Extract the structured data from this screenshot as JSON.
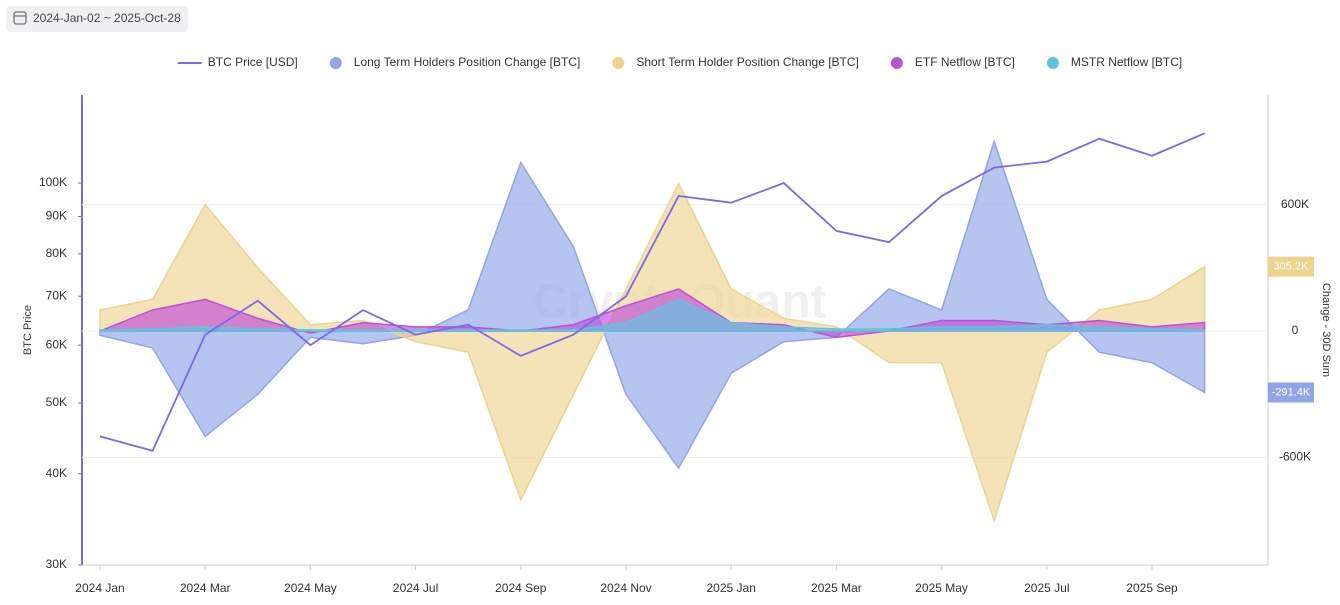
{
  "date_range": "2024-Jan-02 ~ 2025-Oct-28",
  "chart_data": {
    "type": "area",
    "watermark": "CryptoQuant",
    "y_label": "BTC Price",
    "y2_label": "Change - 30D Sum",
    "ylog": true,
    "grid": true,
    "legend": "top",
    "x": [
      "2024-01",
      "2024-02",
      "2024-03",
      "2024-04",
      "2024-05",
      "2024-06",
      "2024-07",
      "2024-08",
      "2024-09",
      "2024-10",
      "2024-11",
      "2024-12",
      "2025-01",
      "2025-02",
      "2025-03",
      "2025-04",
      "2025-05",
      "2025-06",
      "2025-07",
      "2025-08",
      "2025-09",
      "2025-10"
    ],
    "xticks": [
      {
        "value": "2024-01",
        "label": "2024 Jan"
      },
      {
        "value": "2024-03",
        "label": "2024 Mar"
      },
      {
        "value": "2024-05",
        "label": "2024 May"
      },
      {
        "value": "2024-07",
        "label": "2024 Jul"
      },
      {
        "value": "2024-09",
        "label": "2024 Sep"
      },
      {
        "value": "2024-11",
        "label": "2024 Nov"
      },
      {
        "value": "2025-01",
        "label": "2025 Jan"
      },
      {
        "value": "2025-03",
        "label": "2025 Mar"
      },
      {
        "value": "2025-05",
        "label": "2025 May"
      },
      {
        "value": "2025-07",
        "label": "2025 Jul"
      },
      {
        "value": "2025-09",
        "label": "2025 Sep"
      }
    ],
    "ylim": [
      30000,
      132000
    ],
    "yticks": [
      {
        "value": 30000,
        "label": "30K"
      },
      {
        "value": 40000,
        "label": "40K"
      },
      {
        "value": 50000,
        "label": "50K"
      },
      {
        "value": 60000,
        "label": "60K"
      },
      {
        "value": 70000,
        "label": "70K"
      },
      {
        "value": 80000,
        "label": "80K"
      },
      {
        "value": 90000,
        "label": "90K"
      },
      {
        "value": 100000,
        "label": "100K"
      }
    ],
    "y2lim": [
      -1110000,
      1120000
    ],
    "y2ticks": [
      {
        "value": -600000,
        "label": "-600K"
      },
      0,
      {
        "value": 600000,
        "label": "600K"
      }
    ],
    "series": [
      {
        "name": "Long Term Holders Position Change [BTC]",
        "type": "area",
        "axis": "y2",
        "color": "#8fa5e8",
        "values": [
          -20000,
          -80000,
          -500000,
          -300000,
          -30000,
          -60000,
          -20000,
          100000,
          800000,
          400000,
          -300000,
          -650000,
          -200000,
          -50000,
          -30000,
          200000,
          100000,
          900000,
          150000,
          -100000,
          -150000,
          -291400
        ],
        "value_labels": [
          null,
          null,
          null,
          null,
          null,
          null,
          null,
          null,
          null,
          null,
          null,
          null,
          null,
          null,
          null,
          null,
          null,
          null,
          null,
          null,
          null,
          "-291.4K"
        ]
      },
      {
        "name": "Short Term Holder Position Change [BTC]",
        "type": "area",
        "axis": "y2",
        "color": "#ecd48f",
        "values": [
          100000,
          150000,
          600000,
          300000,
          30000,
          50000,
          -50000,
          -100000,
          -800000,
          -300000,
          200000,
          700000,
          200000,
          60000,
          20000,
          -150000,
          -150000,
          -900000,
          -100000,
          100000,
          150000,
          305200
        ],
        "value_labels": [
          null,
          null,
          null,
          null,
          null,
          null,
          null,
          null,
          null,
          null,
          null,
          null,
          null,
          null,
          null,
          null,
          null,
          null,
          null,
          null,
          null,
          "305.2K"
        ]
      },
      {
        "name": "ETF Netflow [BTC]",
        "type": "area",
        "axis": "y2",
        "color": "#c04fd8",
        "values": [
          0,
          100000,
          150000,
          60000,
          -10000,
          40000,
          20000,
          20000,
          0,
          30000,
          120000,
          200000,
          40000,
          30000,
          -30000,
          0,
          50000,
          50000,
          30000,
          50000,
          20000,
          40000
        ]
      },
      {
        "name": "MSTR Netflow [BTC]",
        "type": "area",
        "axis": "y2",
        "color": "#5ec3e0",
        "values": [
          5000,
          10000,
          20000,
          10000,
          5000,
          5000,
          5000,
          5000,
          5000,
          5000,
          40000,
          150000,
          40000,
          20000,
          10000,
          10000,
          20000,
          20000,
          30000,
          20000,
          10000,
          5000
        ]
      },
      {
        "name": "BTC Price [USD]",
        "type": "line",
        "axis": "y",
        "color": "#7b68ee",
        "values": [
          45000,
          43000,
          62000,
          69000,
          60000,
          67000,
          62000,
          64000,
          58000,
          62000,
          70000,
          96000,
          94000,
          100000,
          86000,
          83000,
          96000,
          105000,
          107000,
          115000,
          109000,
          117000
        ]
      }
    ]
  }
}
